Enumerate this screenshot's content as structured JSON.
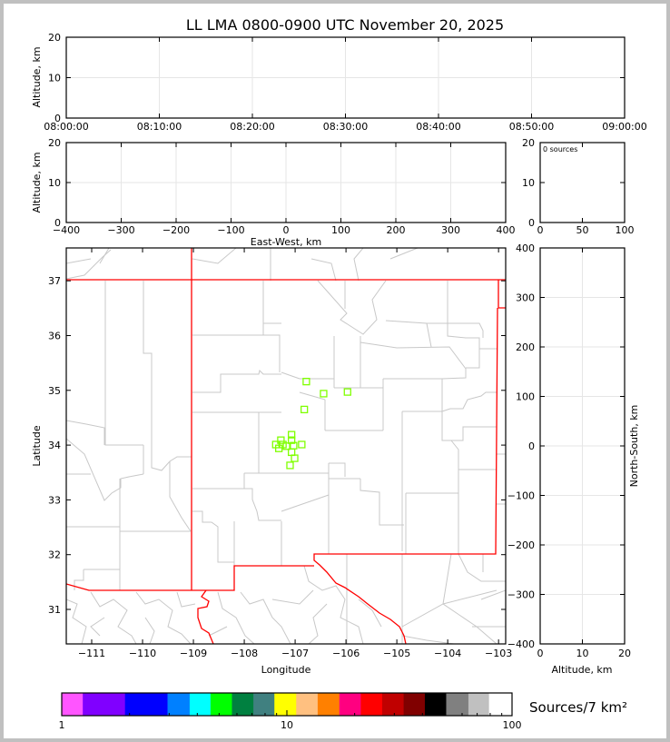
{
  "chart_data": {
    "title": "LL LMA 0800-0900 UTC November 20, 2025",
    "panels": [
      {
        "id": "time-altitude",
        "type": "scatter",
        "ylabel": "Altitude, km",
        "xlabel": "",
        "xticks": [
          "08:00:00",
          "08:10:00",
          "08:20:00",
          "08:30:00",
          "08:40:00",
          "08:50:00",
          "09:00:00"
        ],
        "xlim": [
          "08:00:00",
          "09:00:00"
        ],
        "ylim": [
          0,
          20
        ],
        "yticks": [
          0,
          10,
          20
        ],
        "grid": true,
        "points": []
      },
      {
        "id": "eastwest-altitude",
        "type": "scatter",
        "ylabel": "Altitude, km",
        "xlabel": "East-West, km",
        "xlim": [
          -400,
          400
        ],
        "xticks": [
          -400,
          -300,
          -200,
          -100,
          0,
          100,
          200,
          300,
          400
        ],
        "ylim": [
          0,
          20
        ],
        "yticks": [
          0,
          10,
          20
        ],
        "grid": true,
        "points": []
      },
      {
        "id": "altitude-histogram",
        "type": "bar",
        "annotation": "0 sources",
        "xlim": [
          0,
          100
        ],
        "xticks": [
          0,
          50,
          100
        ],
        "ylim": [
          0,
          20
        ],
        "yticks": [
          0,
          10,
          20
        ],
        "values": []
      },
      {
        "id": "plan-view",
        "type": "scatter",
        "xlabel": "Longitude",
        "ylabel": "Latitude",
        "xlim": [
          -111.5,
          -102.86
        ],
        "ylim": [
          30.37,
          37.6
        ],
        "xticks": [
          -111,
          -110,
          -109,
          -108,
          -107,
          -106,
          -105,
          -104,
          -103
        ],
        "yticks": [
          31,
          32,
          33,
          34,
          35,
          36,
          37
        ],
        "marker": "open-square",
        "marker_color": "#7fff00",
        "state_border_color": "#ff0000",
        "county_border_color": "#c8c8c8",
        "points": [
          [
            -106.78,
            35.16
          ],
          [
            -106.44,
            34.94
          ],
          [
            -105.97,
            34.97
          ],
          [
            -106.82,
            34.65
          ],
          [
            -107.07,
            34.19
          ],
          [
            -107.28,
            34.09
          ],
          [
            -107.07,
            34.09
          ],
          [
            -107.38,
            34.01
          ],
          [
            -107.24,
            34.01
          ],
          [
            -107.17,
            33.98
          ],
          [
            -107.03,
            33.99
          ],
          [
            -106.87,
            34.01
          ],
          [
            -107.32,
            33.94
          ],
          [
            -107.07,
            33.87
          ],
          [
            -107.01,
            33.76
          ],
          [
            -107.1,
            33.63
          ]
        ]
      },
      {
        "id": "altitude-northsouth",
        "type": "scatter",
        "xlabel": "Altitude, km",
        "ylabel": "North-South, km",
        "xlim": [
          0,
          20
        ],
        "xticks": [
          0,
          10,
          20
        ],
        "ylim": [
          -400,
          400
        ],
        "yticks": [
          -400,
          -300,
          -200,
          -100,
          0,
          100,
          200,
          300,
          400
        ],
        "grid": true,
        "points": []
      }
    ],
    "colorbar": {
      "label": "Sources/7 km²",
      "scale": "log",
      "range": [
        1,
        100
      ],
      "ticks": [
        "1",
        "10",
        "100"
      ],
      "colors": [
        "#ff55ff",
        "#8000ff",
        "#0000ff",
        "#0080ff",
        "#00ffff",
        "#00ff00",
        "#008040",
        "#408080",
        "#ffff00",
        "#ffc080",
        "#ff8000",
        "#ff0080",
        "#ff0000",
        "#c00000",
        "#800000",
        "#000000",
        "#808080",
        "#c0c0c0",
        "#ffffff"
      ],
      "boundaries": [
        1,
        1.24,
        1.91,
        2.95,
        3.7,
        4.58,
        5.7,
        7.1,
        8.8,
        11.0,
        13.7,
        17.1,
        21.3,
        26.5,
        33,
        41,
        51,
        64,
        79,
        100
      ]
    }
  }
}
